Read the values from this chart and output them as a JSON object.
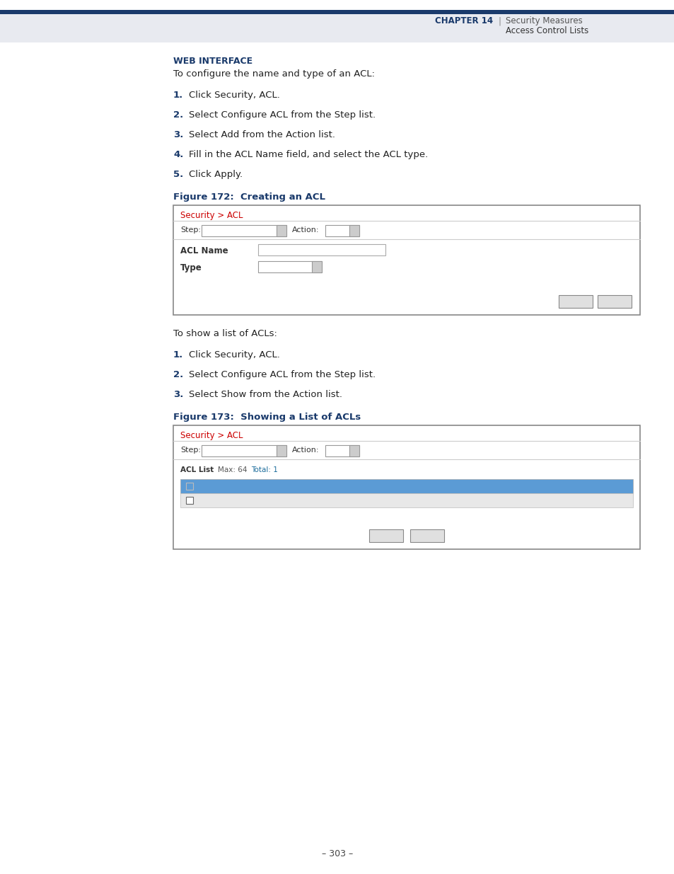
{
  "page_bg": "#ffffff",
  "header_bar_color": "#1a3a6b",
  "header_bg": "#e8eaf0",
  "chapter_label": "CHAPTER 14",
  "chapter_right1": "Security Measures",
  "chapter_right2": "Access Control Lists",
  "header_text_color": "#1a3a6b",
  "web_interface_label": "WEB INTERFACE",
  "web_interface_color": "#1a3a6b",
  "intro_text1": "To configure the name and type of an ACL:",
  "steps1": [
    {
      "num": "1.",
      "text": "Click Security, ACL."
    },
    {
      "num": "2.",
      "text": "Select Configure ACL from the Step list."
    },
    {
      "num": "3.",
      "text": "Select Add from the Action list."
    },
    {
      "num": "4.",
      "text": "Fill in the ACL Name field, and select the ACL type."
    },
    {
      "num": "5.",
      "text": "Click Apply."
    }
  ],
  "fig172_label": "Figure 172:  Creating an ACL",
  "fig172_color": "#1a3a6b",
  "fig173_label": "Figure 173:  Showing a List of ACLs",
  "fig173_color": "#1a3a6b",
  "intro_text2": "To show a list of ACLs:",
  "steps2": [
    {
      "num": "1.",
      "text": "Click Security, ACL."
    },
    {
      "num": "2.",
      "text": "Select Configure ACL from the Step list."
    },
    {
      "num": "3.",
      "text": "Select Show from the Action list."
    }
  ],
  "security_acl_color": "#cc0000",
  "body_text_color": "#222222",
  "num_color": "#1a3a6b",
  "page_num": "303",
  "table_header_bg": "#5b9bd5",
  "table_header_text": "#ffffff",
  "table_row_bg": "#e8e8e8",
  "table_row_text": "#333333",
  "button_bg": "#e0e0e0",
  "button_border": "#888888",
  "acl_list_total_color": "#1a6b9b"
}
